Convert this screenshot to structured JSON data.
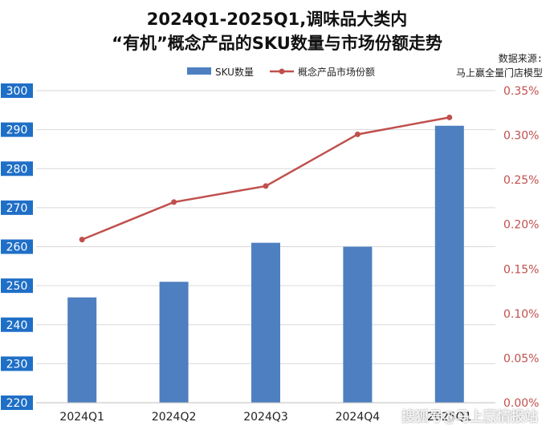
{
  "chart_data": {
    "type": "bar+line",
    "title_line1": "2024Q1-2025Q1,调味品大类内",
    "title_line2": "“有机”概念产品的SKU数量与市场份额走势",
    "source_label": "数据来源:",
    "source_name": "马上赢全量门店模型",
    "categories": [
      "2024Q1",
      "2024Q2",
      "2024Q3",
      "2024Q4",
      "2025Q1"
    ],
    "series": [
      {
        "name": "SKU数量",
        "kind": "bar",
        "axis": "left",
        "values": [
          247,
          251,
          261,
          260,
          291
        ],
        "color": "#4e7fc0"
      },
      {
        "name": "概念产品市场份额",
        "kind": "line",
        "axis": "right",
        "values": [
          0.00183,
          0.00225,
          0.00243,
          0.00301,
          0.0032
        ],
        "color": "#c0504d"
      }
    ],
    "y_left": {
      "range": [
        220,
        300
      ],
      "ticks": [
        "220",
        "230",
        "240",
        "250",
        "260",
        "270",
        "280",
        "290",
        "300"
      ],
      "tick_bg": "#1f6fc7"
    },
    "y_right": {
      "range": [
        0,
        0.0035
      ],
      "ticks": [
        "0.00%",
        "0.05%",
        "0.10%",
        "0.15%",
        "0.20%",
        "0.25%",
        "0.30%",
        "0.35%"
      ],
      "tick_color": "#c0504d"
    },
    "grid": true,
    "legend_position": "top"
  },
  "watermark": "搜狐号@马上赢情报站"
}
